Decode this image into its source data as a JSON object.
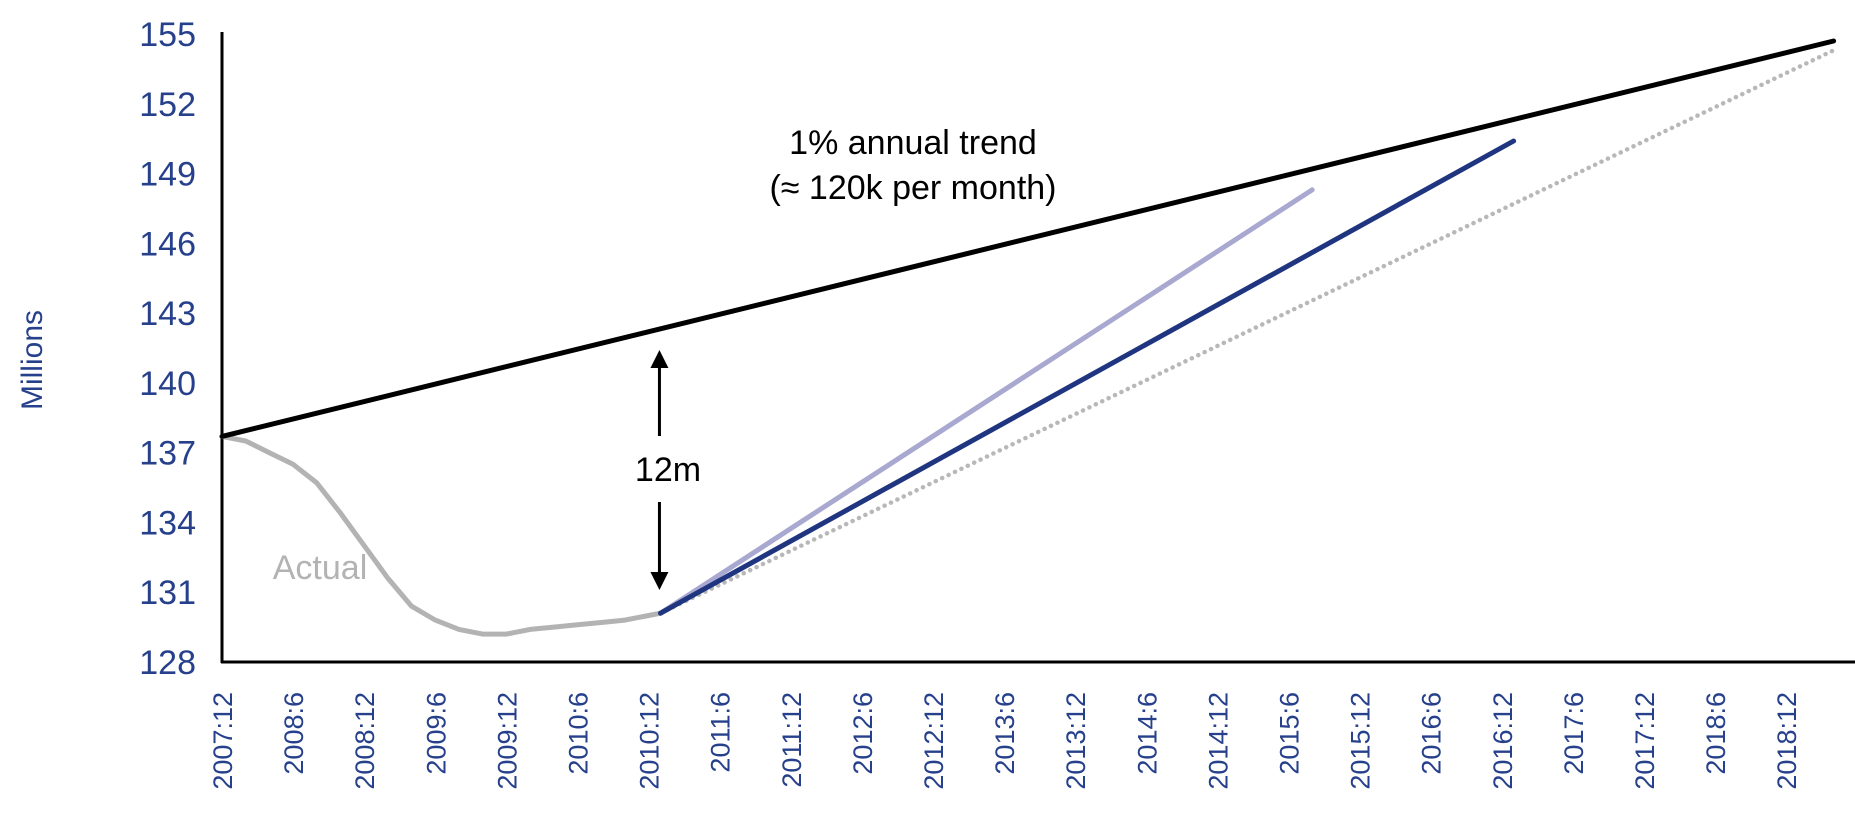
{
  "chart_data": {
    "type": "line",
    "xlabel": "",
    "ylabel": "Millions",
    "ylim": [
      128,
      155
    ],
    "y_ticks": [
      "155",
      "152",
      "149",
      "146",
      "143",
      "140",
      "137",
      "134",
      "131",
      "128"
    ],
    "x_ticks": [
      "2007:12",
      "2008:6",
      "2008:12",
      "2009:6",
      "2009:12",
      "2010:6",
      "2010:12",
      "2011:6",
      "2011:12",
      "2012:6",
      "2012:12",
      "2013:6",
      "2013:12",
      "2014:6",
      "2014:12",
      "2015:6",
      "2015:12",
      "2016:6",
      "2016:12",
      "2017:6",
      "2017:12",
      "2018:6",
      "2018:12"
    ],
    "grid": false,
    "series": [
      {
        "name": "1% annual trend",
        "color": "#000000",
        "style": "solid",
        "x": [
          "2007:12",
          "2019:4"
        ],
        "y": [
          137.7,
          154.7
        ]
      },
      {
        "name": "Actual",
        "color": "#b3b3b3",
        "style": "solid",
        "x": [
          "2007:12",
          "2008:2",
          "2008:4",
          "2008:6",
          "2008:8",
          "2008:10",
          "2008:12",
          "2009:2",
          "2009:4",
          "2009:6",
          "2009:8",
          "2009:10",
          "2009:12",
          "2010:2",
          "2010:4",
          "2010:6",
          "2010:8",
          "2010:10",
          "2010:12",
          "2011:1"
        ],
        "y": [
          137.7,
          137.5,
          137.0,
          136.5,
          135.7,
          134.4,
          133.0,
          131.6,
          130.4,
          129.8,
          129.4,
          129.2,
          129.2,
          129.4,
          129.5,
          129.6,
          129.7,
          129.8,
          130.0,
          130.1
        ]
      },
      {
        "name": "",
        "color": "#a8a8d0",
        "style": "solid",
        "x": [
          "2011:1",
          "2015:8"
        ],
        "y": [
          130.1,
          148.3
        ]
      },
      {
        "name": "",
        "color": "#1f3580",
        "style": "solid",
        "x": [
          "2011:1",
          "2017:1"
        ],
        "y": [
          130.1,
          150.4
        ]
      },
      {
        "name": "",
        "color": "#b8b8b8",
        "style": "dotted",
        "x": [
          "2011:1",
          "2019:4"
        ],
        "y": [
          130.1,
          154.3
        ]
      }
    ],
    "annotations": [
      {
        "id": "trend_label_1",
        "text": "1% annual trend"
      },
      {
        "id": "trend_label_2",
        "text": "(≈ 120k per month)"
      },
      {
        "id": "gap_label",
        "text": "12m"
      },
      {
        "id": "actual_label",
        "text": "Actual"
      }
    ]
  }
}
